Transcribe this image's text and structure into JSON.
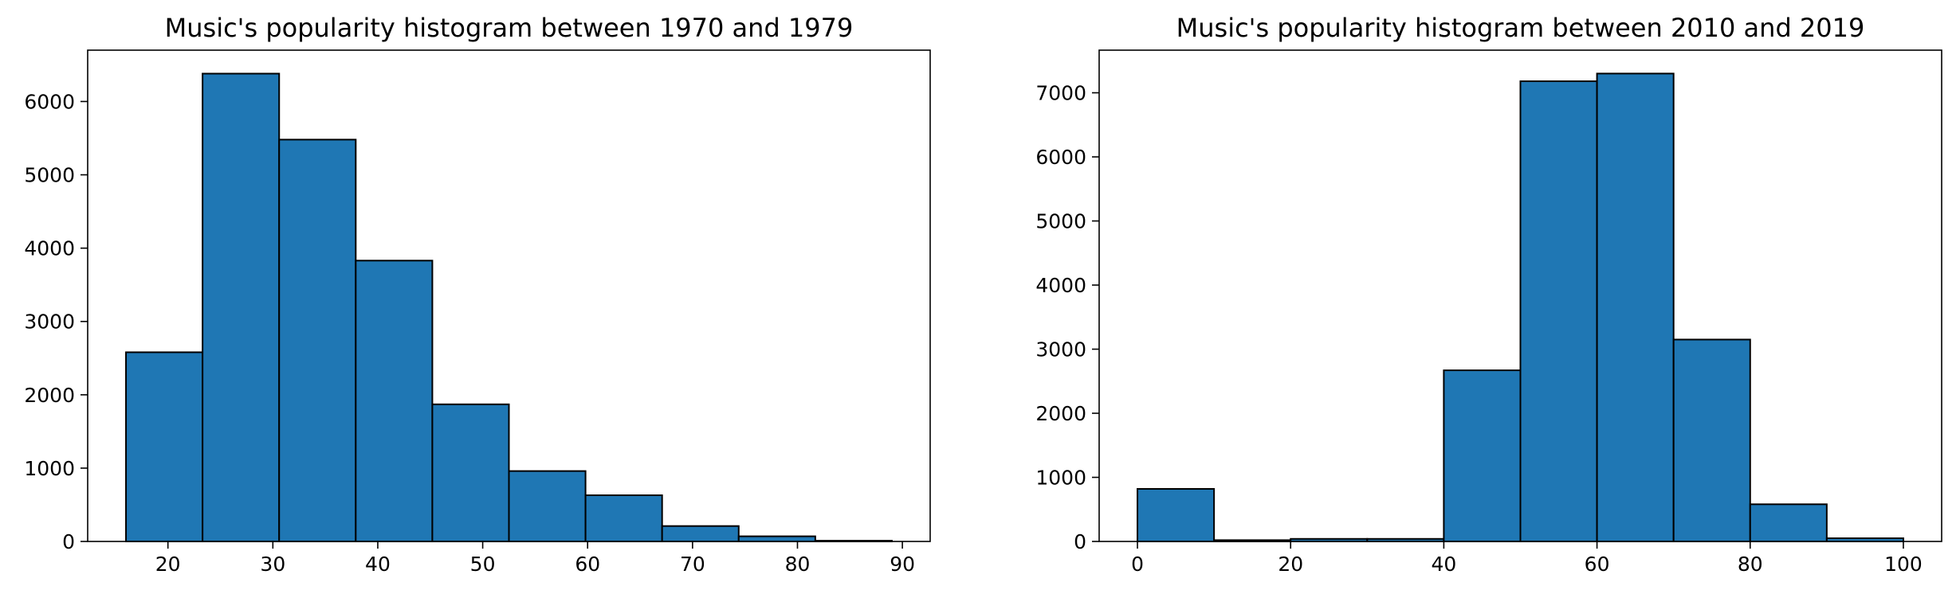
{
  "colors": {
    "bar_fill": "#1f77b4",
    "bar_edge": "#000000",
    "axes": "#000000",
    "background": "#ffffff"
  },
  "chart_data": [
    {
      "type": "bar",
      "title": "Music's popularity histogram between 1970 and 1979",
      "xlabel": "",
      "ylabel": "",
      "bin_edges": [
        16,
        23.3,
        30.6,
        37.9,
        45.2,
        52.5,
        59.8,
        67.1,
        74.4,
        81.7,
        89
      ],
      "values": [
        2580,
        6380,
        5480,
        3830,
        1870,
        960,
        630,
        210,
        70,
        10
      ],
      "xlim": [
        12.35,
        92.65
      ],
      "ylim": [
        0,
        6700
      ],
      "xticks": [
        20,
        30,
        40,
        50,
        60,
        70,
        80,
        90
      ],
      "yticks": [
        0,
        1000,
        2000,
        3000,
        4000,
        5000,
        6000
      ],
      "grid": false,
      "legend": "none"
    },
    {
      "type": "bar",
      "title": "Music's popularity histogram between 2010 and 2019",
      "xlabel": "",
      "ylabel": "",
      "bin_edges": [
        0,
        10,
        20,
        30,
        40,
        50,
        60,
        70,
        80,
        90,
        100
      ],
      "values": [
        820,
        20,
        40,
        40,
        2670,
        7180,
        7300,
        3150,
        580,
        50
      ],
      "xlim": [
        -5,
        105
      ],
      "ylim": [
        0,
        7665
      ],
      "xticks": [
        0,
        20,
        40,
        60,
        80,
        100
      ],
      "yticks": [
        0,
        1000,
        2000,
        3000,
        4000,
        5000,
        6000,
        7000
      ],
      "grid": false,
      "legend": "none"
    }
  ]
}
